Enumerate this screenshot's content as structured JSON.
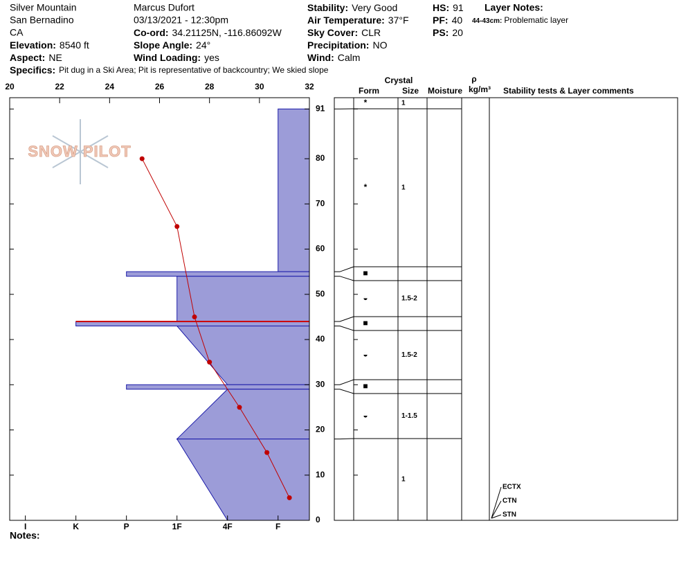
{
  "header": {
    "location": "Silver Mountain",
    "region": "San Bernadino",
    "state": "CA",
    "elevation": {
      "label": "Elevation:",
      "value": "8540 ft"
    },
    "aspect": {
      "label": "Aspect:",
      "value": "NE"
    },
    "observer": "Marcus Dufort",
    "datetime": "03/13/2021 - 12:30pm",
    "coord": {
      "label": "Co-ord:",
      "value": "34.21125N, -116.86092W"
    },
    "slope": {
      "label": "Slope Angle:",
      "value": "24°"
    },
    "wind_loading": {
      "label": "Wind Loading:",
      "value": "yes"
    },
    "stability": {
      "label": "Stability:",
      "value": "Very Good"
    },
    "air_temp": {
      "label": "Air Temperature:",
      "value": "37°F"
    },
    "sky": {
      "label": "Sky Cover:",
      "value": "CLR"
    },
    "precip": {
      "label": "Precipitation:",
      "value": "NO"
    },
    "wind": {
      "label": "Wind:",
      "value": "Calm"
    },
    "hs": {
      "label": "HS:",
      "value": "91"
    },
    "pf": {
      "label": "PF:",
      "value": "40"
    },
    "ps": {
      "label": "PS:",
      "value": "20"
    },
    "layer_notes_title": "Layer Notes:",
    "layer_notes": [
      {
        "range": "44-43cm:",
        "text": "Problematic layer"
      }
    ],
    "specifics": {
      "label": "Specifics:",
      "value": "Pit dug in a Ski Area;  Pit is representative of backcountry;  We skied slope"
    },
    "notes_label": "Notes:"
  },
  "chart_data": {
    "type": "snow-profile",
    "watermark": "SNOW PILOT",
    "xlim": [
      20,
      32
    ],
    "xticks": [
      20,
      22,
      24,
      26,
      28,
      30,
      32
    ],
    "ylim": [
      0,
      93.5
    ],
    "yticks": [
      0,
      10,
      20,
      30,
      40,
      50,
      60,
      70,
      80,
      91
    ],
    "hardness_lim": [
      6.31,
      0.38
    ],
    "hardness_ticks": [
      {
        "value": 6,
        "label": "I"
      },
      {
        "value": 5,
        "label": "K"
      },
      {
        "value": 4,
        "label": "P"
      },
      {
        "value": 3,
        "label": "1F"
      },
      {
        "value": 2,
        "label": "4F"
      },
      {
        "value": 1,
        "label": "F"
      }
    ],
    "layer_fill": "#9c9cd8",
    "layer_edge": "#1a1aa8",
    "layers": [
      {
        "top": 91,
        "bottom": 55,
        "hardness_top": 1,
        "hardness_bottom": 1
      },
      {
        "top": 55,
        "bottom": 54,
        "hardness_top": 4,
        "hardness_bottom": 4
      },
      {
        "top": 54,
        "bottom": 44,
        "hardness_top": 3,
        "hardness_bottom": 3
      },
      {
        "top": 44,
        "bottom": 43,
        "hardness_top": 5,
        "hardness_bottom": 5,
        "color": "#cc0000"
      },
      {
        "top": 43,
        "bottom": 30,
        "hardness_top": 3,
        "hardness_bottom": 2
      },
      {
        "top": 30,
        "bottom": 29,
        "hardness_top": 4,
        "hardness_bottom": 4
      },
      {
        "top": 29,
        "bottom": 18,
        "hardness_top": 2,
        "hardness_bottom": 3
      },
      {
        "top": 18,
        "bottom": 0,
        "hardness_top": 3,
        "hardness_bottom": 2
      }
    ],
    "temperature": {
      "color": "#c00000",
      "depth": [
        80,
        65,
        45,
        35,
        25,
        15,
        5
      ],
      "values": [
        25.3,
        26.7,
        27.4,
        28,
        29.2,
        30.3,
        31.2
      ]
    },
    "columns": {
      "crystal": "Crystal",
      "form": "Form",
      "size": "Size",
      "moisture": "Moisture",
      "rho": "ρ",
      "density_unit": "kg/m³",
      "comments": "Stability tests & Layer comments"
    },
    "crystal_rows": [
      {
        "form": "*",
        "size": "1"
      },
      {
        "form": "*",
        "size": "1"
      },
      {
        "form": "■"
      },
      {
        "form": "◒",
        "size": "1.5-2"
      },
      {
        "form": "■"
      },
      {
        "form": "◒",
        "size": "1.5-2"
      },
      {
        "form": "■"
      },
      {
        "form": "◒",
        "size": "1-1.5"
      },
      {
        "size": "1"
      }
    ],
    "stability_tests": [
      "ECTX",
      "CTN",
      "STN"
    ]
  }
}
